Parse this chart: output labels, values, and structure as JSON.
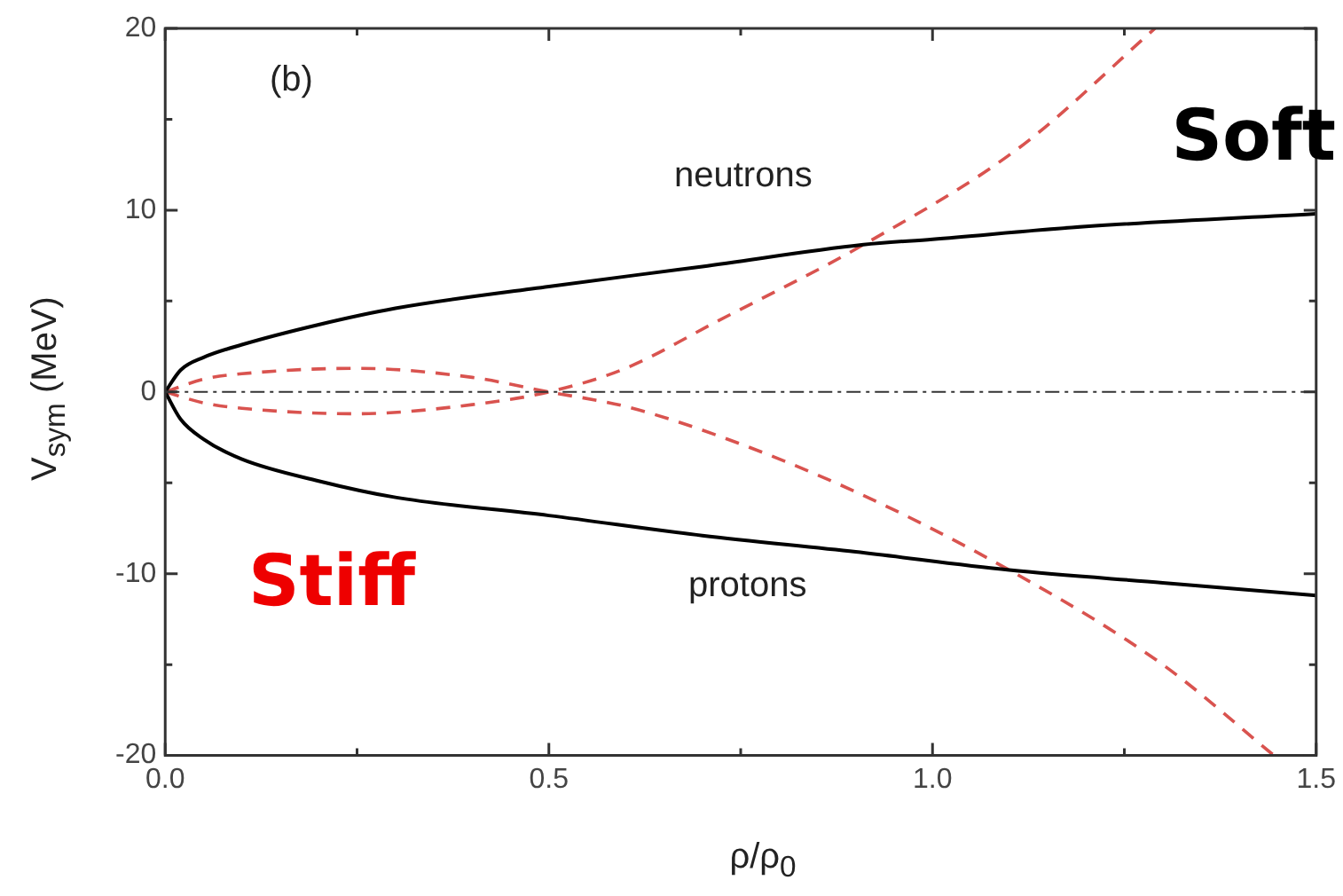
{
  "chart_data": {
    "type": "line",
    "xlabel": "ρ/ρ$_{0}$",
    "ylabel": "V$_{sym}$ (MeV)",
    "xlim": [
      0,
      1.5
    ],
    "ylim": [
      -20,
      20
    ],
    "xticks": [
      {
        "value": 0,
        "label": "0.0"
      },
      {
        "value": 0.25,
        "label": null
      },
      {
        "value": 0.5,
        "label": "0.5"
      },
      {
        "value": 0.75,
        "label": null
      },
      {
        "value": 1,
        "label": "1.0"
      },
      {
        "value": 1.25,
        "label": null
      },
      {
        "value": 1.5,
        "label": "1.5"
      }
    ],
    "yticks": [
      -20,
      {
        "value": -15,
        "label": null
      },
      -10,
      {
        "value": -5,
        "label": null
      },
      0,
      {
        "value": 5,
        "label": null
      },
      10,
      {
        "value": 15,
        "label": null
      },
      20
    ],
    "grid": false,
    "legend": false,
    "marker": "none",
    "series": [
      {
        "name": "neutrons",
        "color": "#000000",
        "line_style": "solid",
        "x": [
          0,
          0.02,
          0.05,
          0.1,
          0.2,
          0.3,
          0.5,
          0.7,
          0.91,
          1.0,
          1.2,
          1.5
        ],
        "values": [
          0,
          1.2,
          1.9,
          2.6,
          3.7,
          4.6,
          5.8,
          6.9,
          8.1,
          8.4,
          9.1,
          9.8
        ]
      },
      {
        "name": "protons",
        "color": "#000000",
        "line_style": "solid",
        "x": [
          0,
          0.02,
          0.05,
          0.1,
          0.2,
          0.3,
          0.5,
          0.7,
          0.9,
          1.1,
          1.3,
          1.5
        ],
        "values": [
          0,
          -1.5,
          -2.6,
          -3.7,
          -4.9,
          -5.8,
          -6.8,
          -7.9,
          -8.8,
          -9.8,
          -10.5,
          -11.2
        ]
      },
      {
        "color": "#d9534f",
        "line_style": "dashed",
        "x": [
          0,
          0.05,
          0.1,
          0.25,
          0.4,
          0.5,
          0.6,
          0.72,
          0.9,
          1.1,
          1.3,
          1.445
        ],
        "values": [
          0,
          0.7,
          1.0,
          1.3,
          0.8,
          0,
          -0.8,
          -2.4,
          -5.5,
          -9.8,
          -15,
          -20
        ]
      },
      {
        "color": "#d9534f",
        "line_style": "dashed",
        "x": [
          0,
          0.05,
          0.1,
          0.25,
          0.4,
          0.5,
          0.6,
          0.72,
          0.91,
          1.115,
          1.29
        ],
        "values": [
          0,
          -0.6,
          -0.9,
          -1.2,
          -0.7,
          0,
          1.3,
          3.9,
          8.1,
          13.5,
          20
        ]
      }
    ],
    "ref_lines": [
      {
        "axis": "y",
        "value": 0,
        "color": "#333333",
        "line_style": "dashdot"
      }
    ],
    "annotations": [
      "(b)",
      "Stiff",
      "Soft"
    ]
  }
}
